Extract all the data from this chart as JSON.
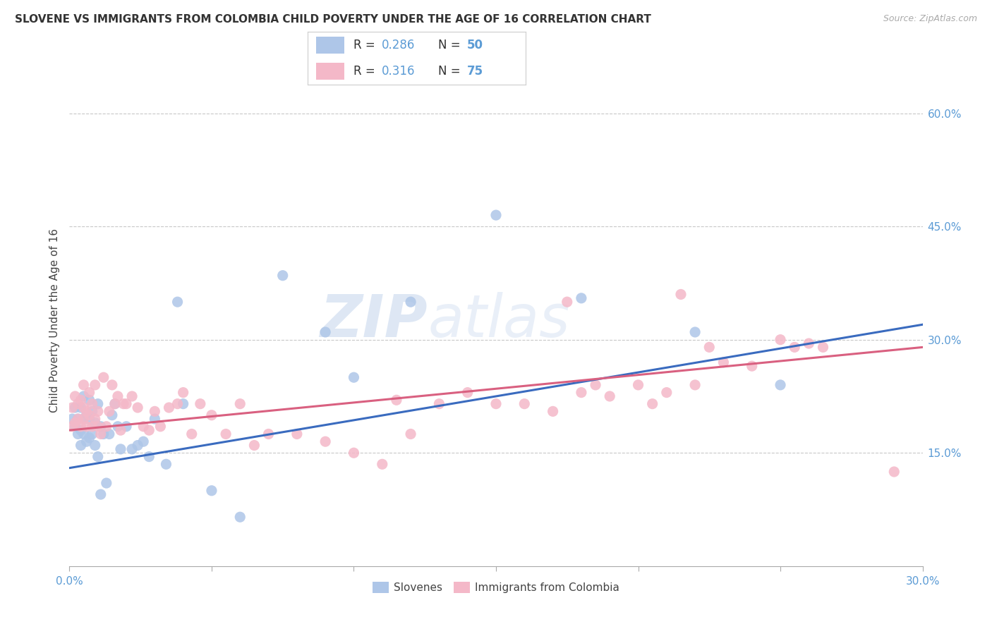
{
  "title": "SLOVENE VS IMMIGRANTS FROM COLOMBIA CHILD POVERTY UNDER THE AGE OF 16 CORRELATION CHART",
  "source": "Source: ZipAtlas.com",
  "ylabel": "Child Poverty Under the Age of 16",
  "xlim": [
    0.0,
    0.3
  ],
  "ylim": [
    0.0,
    0.65
  ],
  "xticks": [
    0.0,
    0.05,
    0.1,
    0.15,
    0.2,
    0.25,
    0.3
  ],
  "xtick_labels": [
    "0.0%",
    "",
    "",
    "",
    "",
    "",
    "30.0%"
  ],
  "yticks_right": [
    0.15,
    0.3,
    0.45,
    0.6
  ],
  "ytick_right_labels": [
    "15.0%",
    "30.0%",
    "45.0%",
    "60.0%"
  ],
  "blue_scatter_color": "#aec6e8",
  "pink_scatter_color": "#f4b8c8",
  "blue_line_color": "#3a6bbf",
  "pink_line_color": "#d96080",
  "R_blue": 0.286,
  "N_blue": 50,
  "R_pink": 0.316,
  "N_pink": 75,
  "grid_color": "#c8c8c8",
  "background_color": "#ffffff",
  "watermark_zip": "ZIP",
  "watermark_atlas": "atlas",
  "legend_label_blue": "Slovenes",
  "legend_label_pink": "Immigrants from Colombia",
  "blue_trend_x0": 0.0,
  "blue_trend_y0": 0.13,
  "blue_trend_x1": 0.3,
  "blue_trend_y1": 0.32,
  "pink_trend_x0": 0.0,
  "pink_trend_y0": 0.18,
  "pink_trend_x1": 0.3,
  "pink_trend_y1": 0.29,
  "slovene_x": [
    0.001,
    0.002,
    0.002,
    0.003,
    0.003,
    0.004,
    0.004,
    0.004,
    0.005,
    0.005,
    0.005,
    0.006,
    0.006,
    0.007,
    0.007,
    0.007,
    0.008,
    0.008,
    0.009,
    0.009,
    0.01,
    0.01,
    0.011,
    0.011,
    0.012,
    0.013,
    0.014,
    0.015,
    0.016,
    0.017,
    0.018,
    0.02,
    0.022,
    0.024,
    0.026,
    0.028,
    0.03,
    0.034,
    0.038,
    0.04,
    0.05,
    0.06,
    0.075,
    0.09,
    0.1,
    0.12,
    0.15,
    0.18,
    0.22,
    0.25
  ],
  "slovene_y": [
    0.195,
    0.185,
    0.21,
    0.175,
    0.195,
    0.18,
    0.21,
    0.16,
    0.195,
    0.225,
    0.175,
    0.2,
    0.165,
    0.195,
    0.22,
    0.17,
    0.205,
    0.175,
    0.19,
    0.16,
    0.215,
    0.145,
    0.185,
    0.095,
    0.175,
    0.11,
    0.175,
    0.2,
    0.215,
    0.185,
    0.155,
    0.185,
    0.155,
    0.16,
    0.165,
    0.145,
    0.195,
    0.135,
    0.35,
    0.215,
    0.1,
    0.065,
    0.385,
    0.31,
    0.25,
    0.35,
    0.465,
    0.355,
    0.31,
    0.24
  ],
  "colombia_x": [
    0.001,
    0.001,
    0.002,
    0.002,
    0.003,
    0.003,
    0.004,
    0.004,
    0.005,
    0.005,
    0.005,
    0.006,
    0.006,
    0.007,
    0.007,
    0.008,
    0.008,
    0.009,
    0.009,
    0.01,
    0.01,
    0.011,
    0.012,
    0.013,
    0.014,
    0.015,
    0.016,
    0.017,
    0.018,
    0.019,
    0.02,
    0.022,
    0.024,
    0.026,
    0.028,
    0.03,
    0.032,
    0.035,
    0.038,
    0.04,
    0.043,
    0.046,
    0.05,
    0.055,
    0.06,
    0.065,
    0.07,
    0.08,
    0.09,
    0.1,
    0.11,
    0.115,
    0.12,
    0.13,
    0.14,
    0.15,
    0.16,
    0.17,
    0.175,
    0.18,
    0.185,
    0.19,
    0.2,
    0.205,
    0.21,
    0.215,
    0.22,
    0.225,
    0.23,
    0.24,
    0.25,
    0.255,
    0.26,
    0.265,
    0.29
  ],
  "colombia_y": [
    0.21,
    0.185,
    0.225,
    0.19,
    0.215,
    0.195,
    0.22,
    0.185,
    0.21,
    0.195,
    0.24,
    0.205,
    0.185,
    0.23,
    0.2,
    0.215,
    0.185,
    0.195,
    0.24,
    0.185,
    0.205,
    0.175,
    0.25,
    0.185,
    0.205,
    0.24,
    0.215,
    0.225,
    0.18,
    0.215,
    0.215,
    0.225,
    0.21,
    0.185,
    0.18,
    0.205,
    0.185,
    0.21,
    0.215,
    0.23,
    0.175,
    0.215,
    0.2,
    0.175,
    0.215,
    0.16,
    0.175,
    0.175,
    0.165,
    0.15,
    0.135,
    0.22,
    0.175,
    0.215,
    0.23,
    0.215,
    0.215,
    0.205,
    0.35,
    0.23,
    0.24,
    0.225,
    0.24,
    0.215,
    0.23,
    0.36,
    0.24,
    0.29,
    0.27,
    0.265,
    0.3,
    0.29,
    0.295,
    0.29,
    0.125
  ]
}
